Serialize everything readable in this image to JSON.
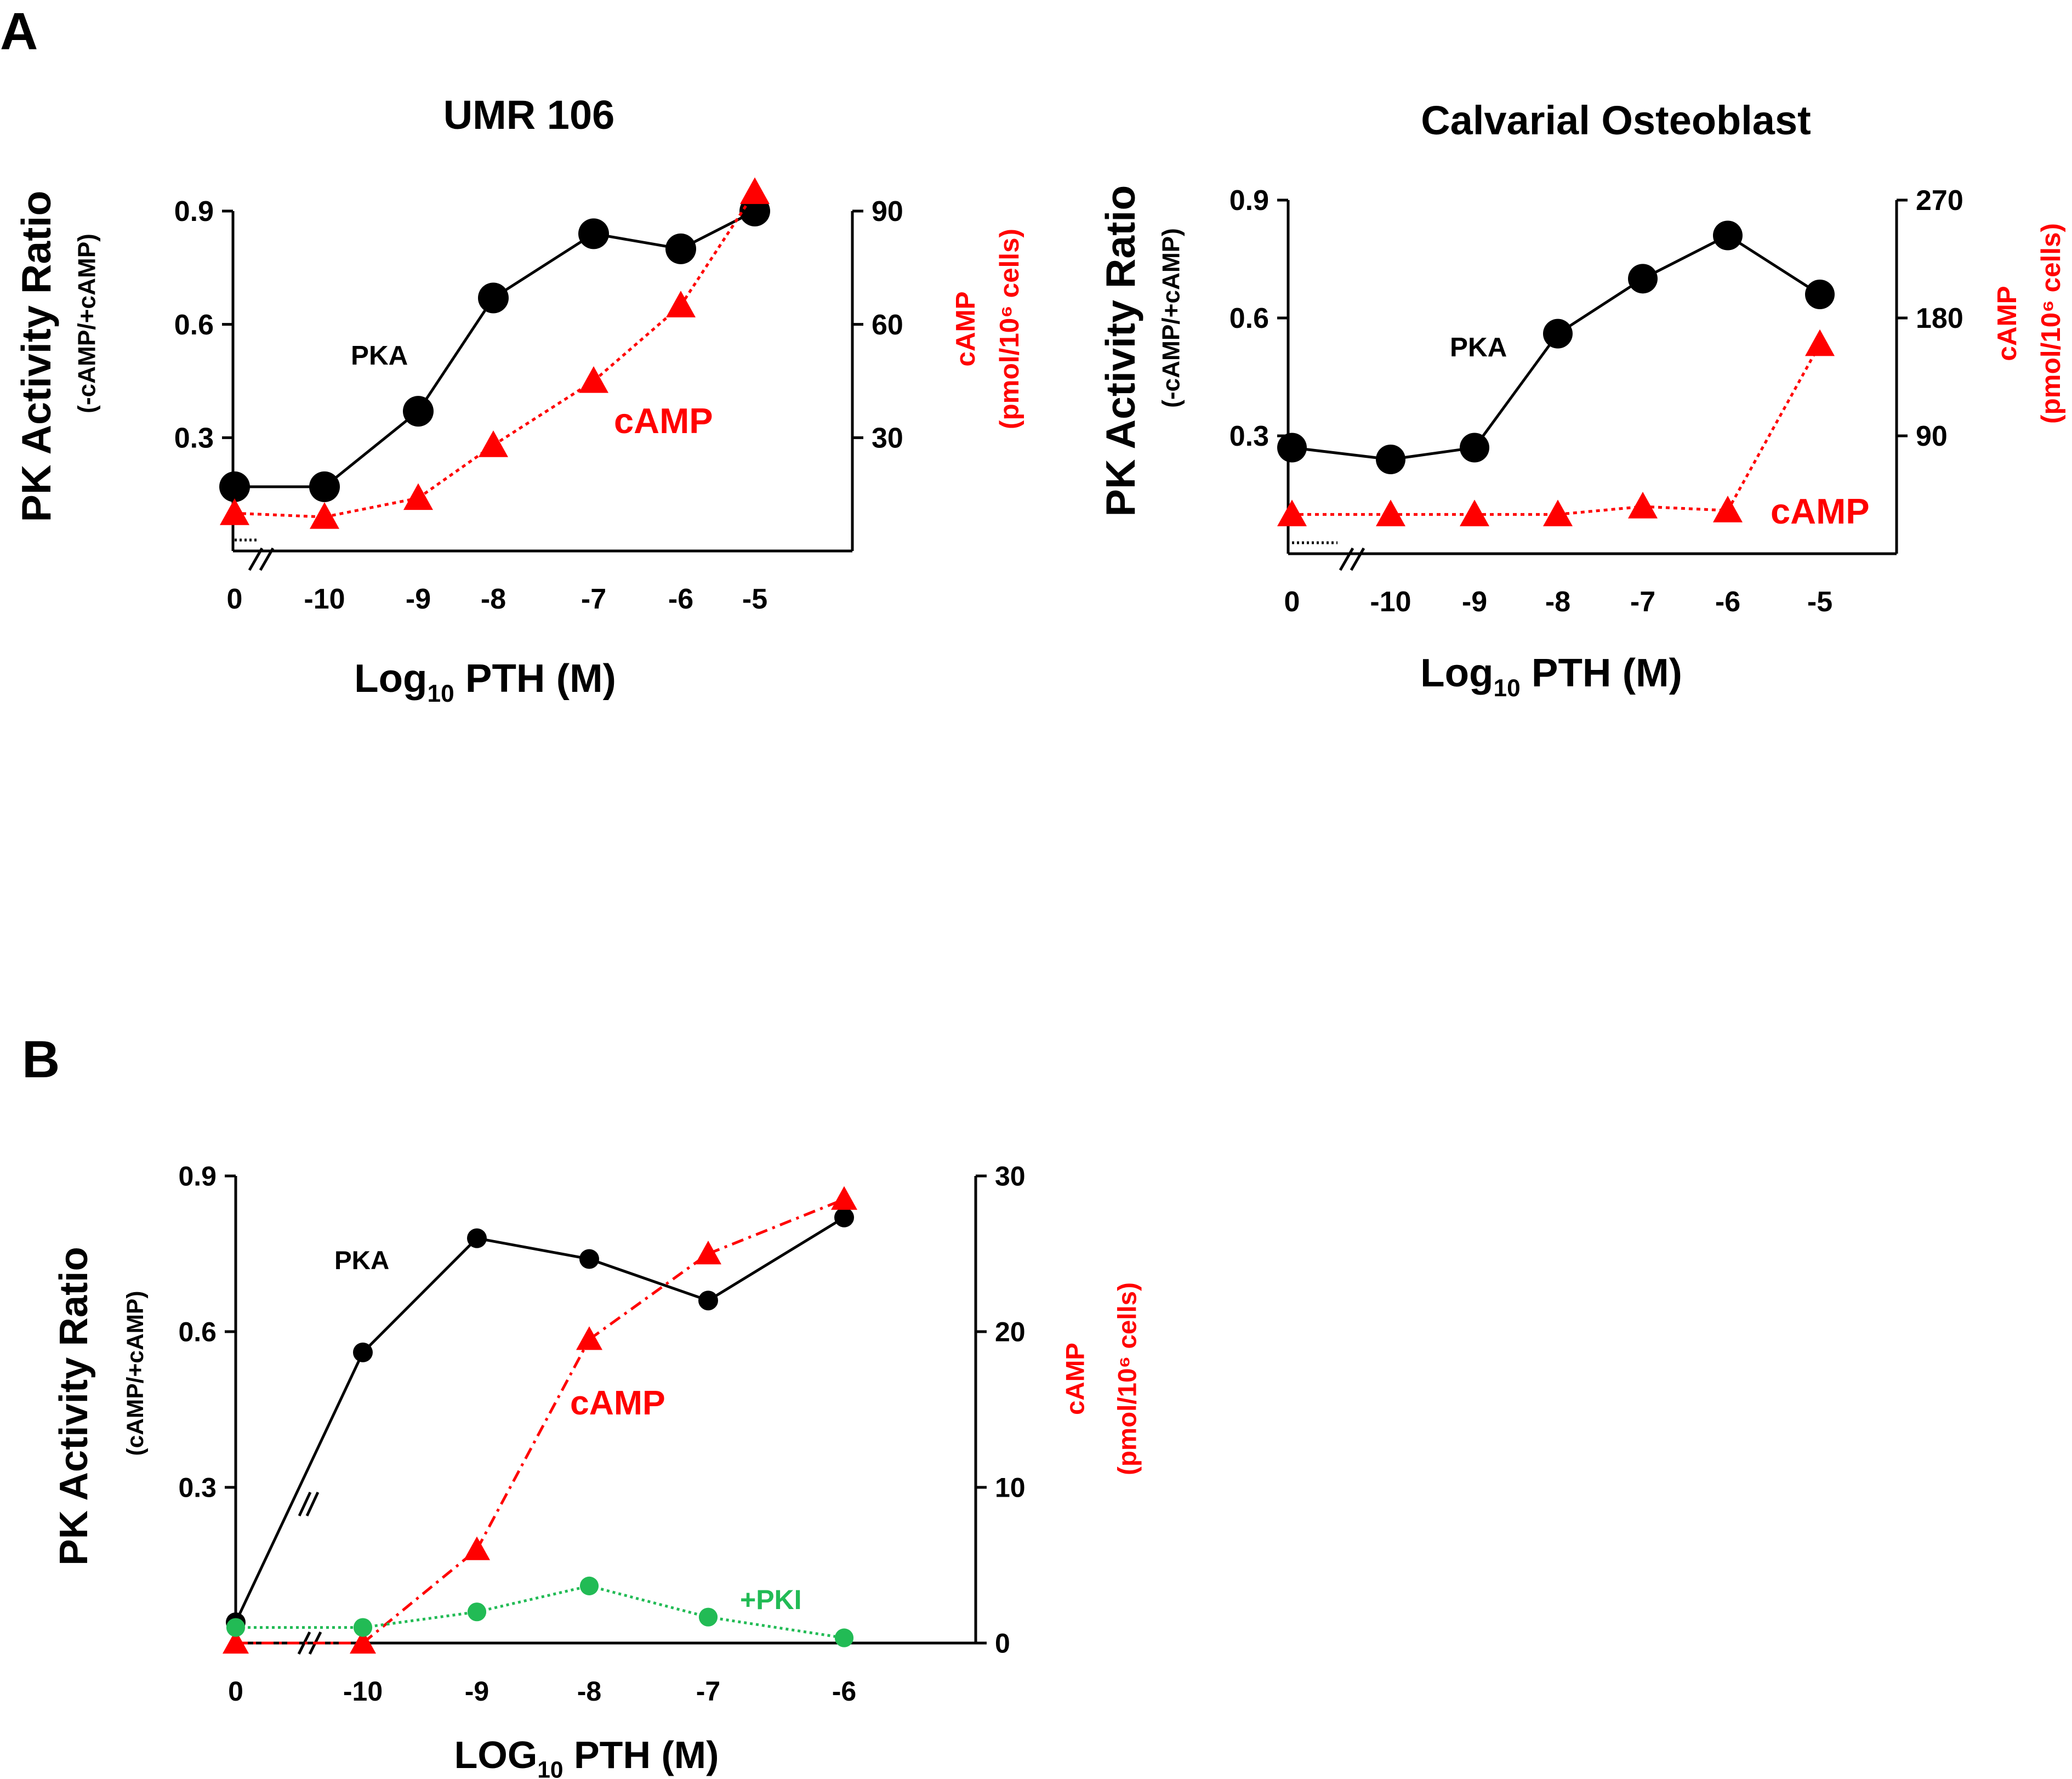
{
  "panels": {
    "a": {
      "label": "A"
    },
    "b": {
      "label": "B"
    }
  },
  "colors": {
    "pka": "#000000",
    "camp": "#ff0000",
    "pki": "#22bb55"
  },
  "chart_data": [
    {
      "id": "umr",
      "type": "line",
      "title": "UMR 106",
      "xlabel": "Log10 PTH (M)",
      "xlabel_main": "Log",
      "xlabel_sub": "10",
      "xlabel_rest": " PTH (M)",
      "ylabel": "PK Activity Ratio",
      "ylabel_sub": "(-cAMP/+cAMP)",
      "y2label": "cAMP",
      "y2label_sub": "(pmol/10⁶ cells)",
      "x_ticks": [
        "0",
        "-10",
        "-9",
        "-8",
        "-7",
        "-6",
        "-5"
      ],
      "y_ticks": [
        "0.3",
        "0.6",
        "0.9"
      ],
      "y_tick_values": [
        0.3,
        0.6,
        0.9
      ],
      "y2_ticks": [
        "30",
        "60",
        "90"
      ],
      "y2_tick_values": [
        30,
        60,
        90
      ],
      "ylim": [
        0,
        0.9
      ],
      "y2lim": [
        0,
        90
      ],
      "series": [
        {
          "name": "PKA",
          "label": "PKA",
          "marker": "circle",
          "x": [
            0,
            -10,
            -9,
            -8,
            -7,
            -6,
            -5
          ],
          "values": [
            0.17,
            0.17,
            0.37,
            0.67,
            0.84,
            0.8,
            0.9
          ]
        },
        {
          "name": "cAMP",
          "label": "cAMP",
          "marker": "triangle",
          "axis": "right",
          "x": [
            0,
            -10,
            -9,
            -8,
            -7,
            -6,
            -5
          ],
          "values": [
            10,
            9,
            14,
            28,
            45,
            65,
            95
          ]
        }
      ]
    },
    {
      "id": "calv",
      "type": "line",
      "title": "Calvarial Osteoblast",
      "xlabel": "Log10 PTH (M)",
      "xlabel_main": "Log",
      "xlabel_sub": "10",
      "xlabel_rest": " PTH (M)",
      "ylabel": "PK Activity Ratio",
      "ylabel_sub": "(-cAMP/+cAMP)",
      "y2label": "cAMP",
      "y2label_sub": "(pmol/10⁶ cells)",
      "x_ticks": [
        "0",
        "-10",
        "-9",
        "-8",
        "-7",
        "-6",
        "-5"
      ],
      "y_ticks": [
        "0.3",
        "0.6",
        "0.9"
      ],
      "y_tick_values": [
        0.3,
        0.6,
        0.9
      ],
      "y2_ticks": [
        "90",
        "180",
        "270"
      ],
      "y2_tick_values": [
        90,
        180,
        270
      ],
      "ylim": [
        0,
        0.9
      ],
      "y2lim": [
        0,
        270
      ],
      "series": [
        {
          "name": "PKA",
          "label": "PKA",
          "marker": "circle",
          "x": [
            0,
            -10,
            -9,
            -8,
            -7,
            -6,
            -5
          ],
          "values": [
            0.27,
            0.24,
            0.27,
            0.56,
            0.7,
            0.81,
            0.66
          ]
        },
        {
          "name": "cAMP",
          "label": "cAMP",
          "marker": "triangle",
          "axis": "right",
          "x": [
            0,
            -10,
            -9,
            -8,
            -7,
            -6,
            -5
          ],
          "values": [
            30,
            30,
            30,
            30,
            36,
            33,
            160
          ]
        }
      ]
    },
    {
      "id": "b",
      "type": "line",
      "title": "",
      "xlabel": "LOG10 PTH (M)",
      "xlabel_main": "LOG",
      "xlabel_sub": "10",
      "xlabel_rest": " PTH (M)",
      "ylabel": "PK Activity Ratio",
      "ylabel_sub": "(cAMP/+cAMP)",
      "y2label": "cAMP",
      "y2label_sub": "(pmol/10⁶ cells)",
      "x_ticks": [
        "0",
        "-10",
        "-9",
        "-8",
        "-7",
        "-6"
      ],
      "y_ticks": [
        "0.3",
        "0.6",
        "0.9"
      ],
      "y_tick_values": [
        0.3,
        0.6,
        0.9
      ],
      "y2_ticks": [
        "0",
        "10",
        "20",
        "30"
      ],
      "y2_tick_values": [
        0,
        10,
        20,
        30
      ],
      "ylim": [
        0,
        0.9
      ],
      "y2lim": [
        0,
        30
      ],
      "series": [
        {
          "name": "PKA",
          "label": "PKA",
          "marker": "circle",
          "x": [
            0,
            -10,
            -9,
            -8,
            -7,
            -6
          ],
          "values": [
            0.04,
            0.56,
            0.78,
            0.74,
            0.66,
            0.82
          ]
        },
        {
          "name": "cAMP",
          "label": "cAMP",
          "marker": "triangle",
          "axis": "right",
          "x": [
            0,
            -10,
            -9,
            -8,
            -7,
            -6
          ],
          "values": [
            0,
            0,
            6,
            19.5,
            25,
            28.5
          ]
        },
        {
          "name": "+PKI",
          "label": "+PKI",
          "marker": "circle",
          "x": [
            0,
            -10,
            -9,
            -8,
            -7,
            -6
          ],
          "values": [
            0.03,
            0.03,
            0.06,
            0.11,
            0.05,
            0.01
          ]
        }
      ]
    }
  ]
}
